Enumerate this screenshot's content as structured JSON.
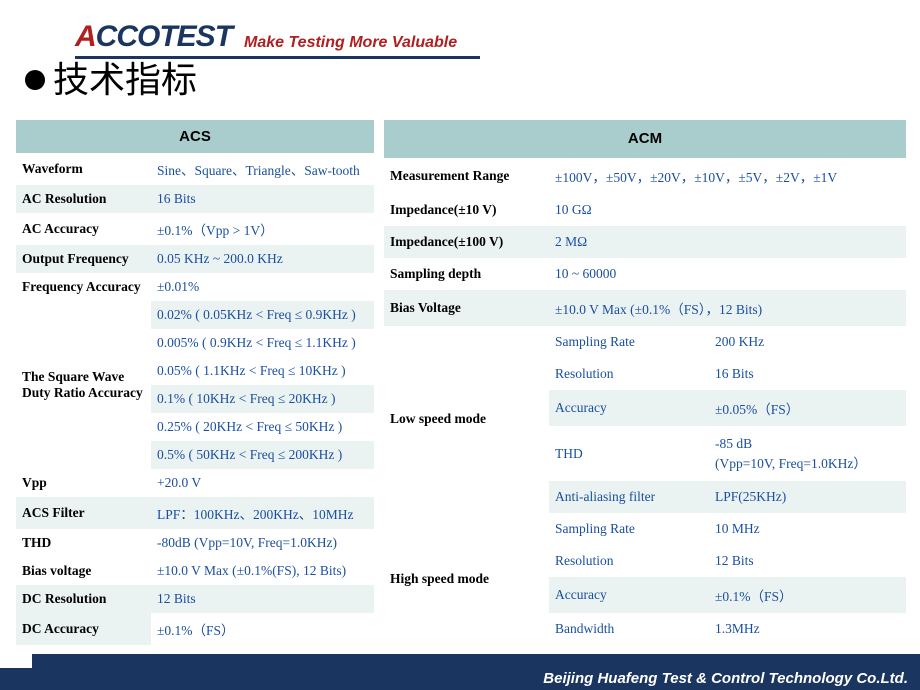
{
  "brand": {
    "logo_pre": "A",
    "logo_mid": "CCO",
    "logo_post": "TEST",
    "tagline": "Make Testing More Valuable"
  },
  "title": "技术指标",
  "colors": {
    "header_bg": "#a9cdcd",
    "alt_row_bg": "#eaf2f2",
    "value_text": "#1a4fa0",
    "label_text": "#000000",
    "footer_bg": "#1a355f",
    "brand_red": "#b02020"
  },
  "acs": {
    "header": "ACS",
    "rows": [
      {
        "label": "Waveform",
        "value": "Sine、Square、Triangle、Saw-tooth",
        "alt": false
      },
      {
        "label": "AC Resolution",
        "value": "16 Bits",
        "alt": true
      },
      {
        "label": "AC Accuracy",
        "value": "±0.1%（Vpp > 1V）",
        "alt": false
      },
      {
        "label": "Output Frequency",
        "value": "0.05 KHz ~ 200.0 KHz",
        "alt": true
      },
      {
        "label": "Frequency Accuracy",
        "value": "±0.01%",
        "alt": false
      }
    ],
    "duty": {
      "label": "The Square Wave Duty  Ratio Accuracy",
      "values": [
        "0.02% ( 0.05KHz < Freq ≤ 0.9KHz )",
        "0.005% ( 0.9KHz < Freq ≤ 1.1KHz )",
        "0.05% ( 1.1KHz < Freq ≤ 10KHz )",
        "0.1% ( 10KHz < Freq ≤ 20KHz )",
        "0.25% ( 20KHz < Freq ≤ 50KHz )",
        "0.5% ( 50KHz < Freq ≤ 200KHz )"
      ]
    },
    "rows2": [
      {
        "label": "Vpp",
        "value": "+20.0 V",
        "alt": true
      },
      {
        "label": "ACS Filter",
        "value": "LPF：100KHz、200KHz、10MHz",
        "alt": false
      },
      {
        "label": "THD",
        "value": "-80dB (Vpp=10V, Freq=1.0KHz)",
        "alt": true
      },
      {
        "label": "Bias voltage",
        "value": "±10.0 V Max (±0.1%(FS), 12 Bits)",
        "alt": false
      },
      {
        "label": "DC Resolution",
        "value": "12 Bits",
        "alt": true
      },
      {
        "label": "DC Accuracy",
        "value": "±0.1%（FS）",
        "alt": false
      }
    ]
  },
  "acm": {
    "header": "ACM",
    "rows": [
      {
        "label": "Measurement Range",
        "value": "±100V，±50V，±20V，±10V，±5V，±2V，±1V",
        "alt": false
      },
      {
        "label": "Impedance(±10 V)",
        "value": "10 GΩ",
        "alt": true
      },
      {
        "label": "Impedance(±100 V)",
        "value": "2 MΩ",
        "alt": false
      },
      {
        "label": "Sampling depth",
        "value": "10 ~ 60000",
        "alt": true
      },
      {
        "label": "Bias Voltage",
        "value": "±10.0 V Max (±0.1%（FS），12 Bits)",
        "alt": false
      }
    ],
    "low": {
      "label": "Low speed mode",
      "rows": [
        {
          "k": "Sampling Rate",
          "v": "200 KHz",
          "alt": true
        },
        {
          "k": "Resolution",
          "v": "16 Bits",
          "alt": false
        },
        {
          "k": "Accuracy",
          "v": "±0.05%（FS）",
          "alt": true
        },
        {
          "k": "THD",
          "v": " -85 dB\n(Vpp=10V, Freq=1.0KHz）",
          "alt": false
        },
        {
          "k": "Anti-aliasing filter",
          "v": "LPF(25KHz)",
          "alt": true
        }
      ]
    },
    "high": {
      "label": "High speed mode",
      "rows": [
        {
          "k": "Sampling Rate",
          "v": "10 MHz",
          "alt": false
        },
        {
          "k": "Resolution",
          "v": "12 Bits",
          "alt": true
        },
        {
          "k": "Accuracy",
          "v": "±0.1%（FS）",
          "alt": false
        },
        {
          "k": "Bandwidth",
          "v": "1.3MHz",
          "alt": true
        }
      ]
    }
  },
  "footer": "Beijing Huafeng Test & Control Technology Co.Ltd."
}
